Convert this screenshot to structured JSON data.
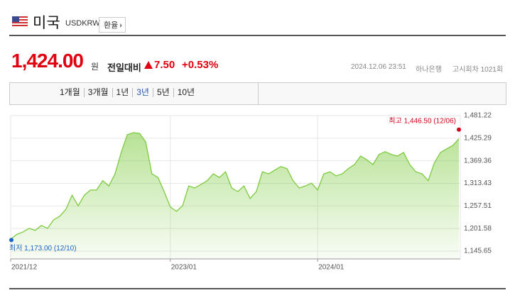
{
  "header": {
    "title": "미국",
    "code": "USDKRW",
    "button": "환율"
  },
  "quote": {
    "price": "1,424.00",
    "unit": "원",
    "change_label": "전일대비",
    "change": "7.50",
    "change_pct": "+0.53%",
    "date": "2024.12.06 23:51",
    "bank": "하나은행",
    "round": "고시회차 1021회"
  },
  "tabs": {
    "items": [
      "1개월",
      "3개월",
      "1년",
      "3년",
      "5년",
      "10년"
    ],
    "active": 3
  },
  "chart_data": {
    "type": "area",
    "grid": true,
    "categories": [
      "2021/12",
      null,
      null,
      null,
      null,
      null,
      null,
      null,
      null,
      null,
      null,
      null,
      null,
      null,
      null,
      null,
      null,
      null,
      null,
      null,
      null,
      null,
      null,
      null,
      null,
      null,
      "2023/01",
      null,
      null,
      null,
      null,
      null,
      null,
      null,
      null,
      null,
      null,
      null,
      null,
      null,
      null,
      null,
      null,
      null,
      null,
      null,
      null,
      null,
      null,
      null,
      "2024/01",
      null,
      null,
      null,
      null,
      null,
      null,
      null,
      null,
      null,
      null,
      null,
      null,
      null,
      null,
      null,
      null,
      null,
      null,
      null,
      null,
      null,
      null,
      null
    ],
    "series": [
      {
        "color": "#7dcb3f",
        "values": [
          1175,
          1187,
          1193,
          1202,
          1197,
          1209,
          1202,
          1223,
          1232,
          1249,
          1284,
          1258,
          1284,
          1297,
          1297,
          1320,
          1307,
          1337,
          1390,
          1434,
          1439,
          1437,
          1416,
          1337,
          1328,
          1293,
          1255,
          1244,
          1258,
          1307,
          1302,
          1311,
          1320,
          1337,
          1328,
          1342,
          1302,
          1293,
          1307,
          1276,
          1293,
          1342,
          1337,
          1346,
          1355,
          1350,
          1320,
          1302,
          1307,
          1314,
          1297,
          1337,
          1342,
          1332,
          1337,
          1350,
          1360,
          1381,
          1372,
          1360,
          1385,
          1392,
          1385,
          1381,
          1390,
          1360,
          1342,
          1337,
          1320,
          1364,
          1390,
          1399,
          1407,
          1424
        ]
      }
    ],
    "ylim": [
      1145.65,
      1481.22
    ],
    "yticks": [
      {
        "value": 1481.22,
        "label": "1,481.22"
      },
      {
        "value": 1425.29,
        "label": "1,425.29"
      },
      {
        "value": 1369.36,
        "label": "1,369.36"
      },
      {
        "value": 1313.43,
        "label": "1,313.43"
      },
      {
        "value": 1257.51,
        "label": "1,257.51"
      },
      {
        "value": 1201.58,
        "label": "1,201.58"
      },
      {
        "value": 1145.65,
        "label": "1,145.65"
      }
    ],
    "annotations": [
      {
        "text": "최고 1,446.50 (12/06)",
        "value": 1446.5,
        "color": "#d0021b"
      },
      {
        "text": "최저 1,173.00 (12/10)",
        "value": 1173,
        "color": "#1a63c7"
      }
    ]
  }
}
